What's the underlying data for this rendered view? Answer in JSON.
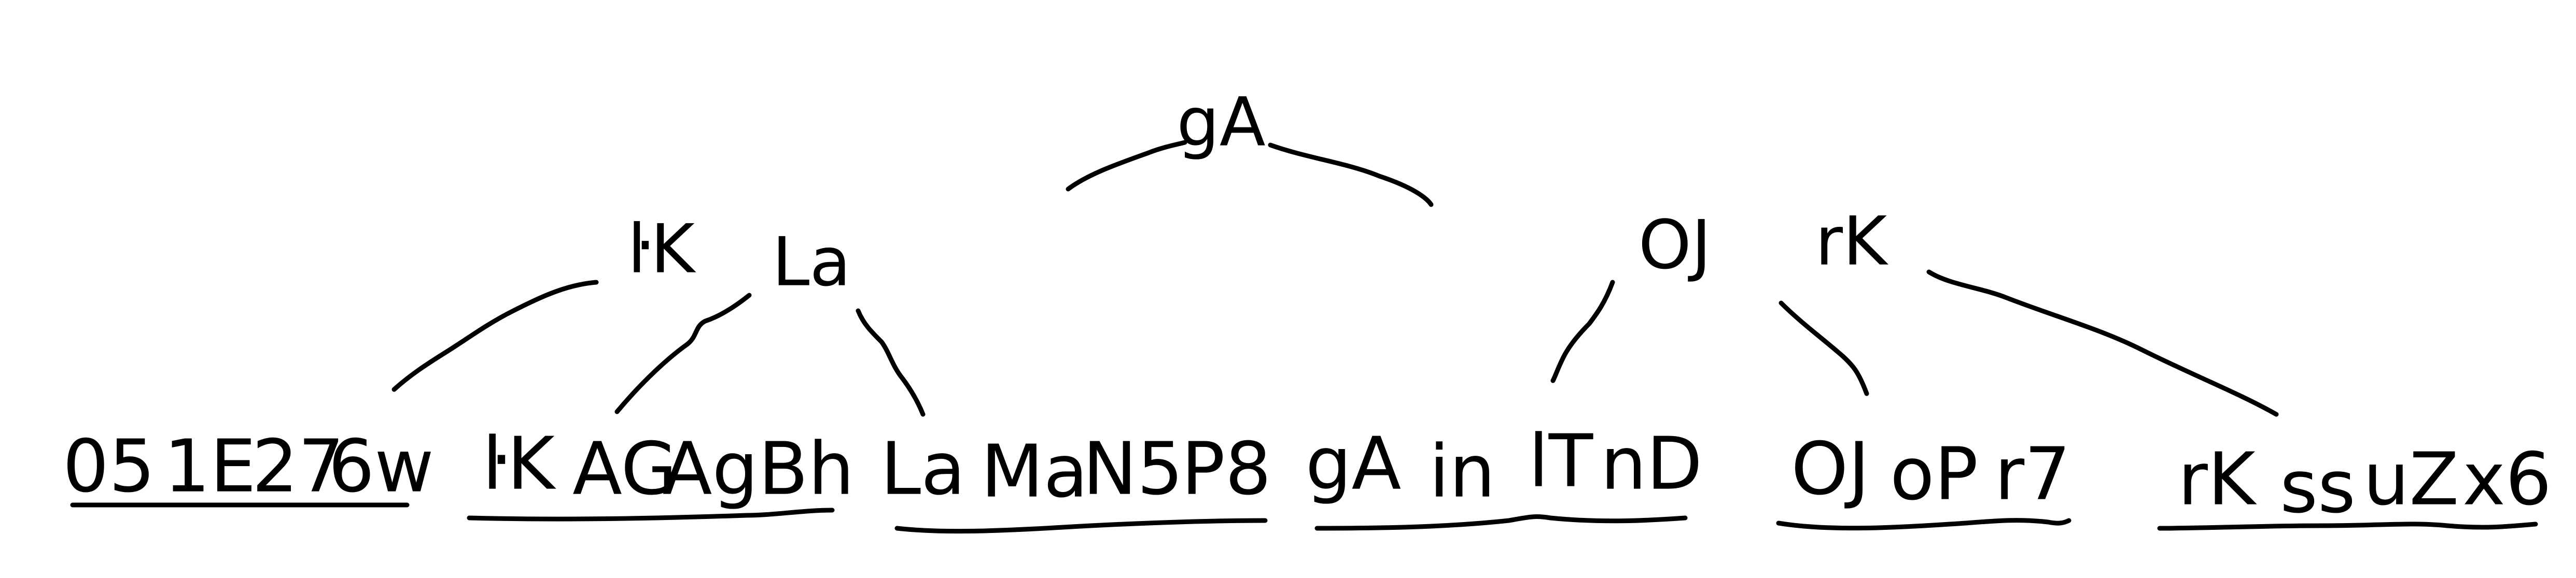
{
  "tree": {
    "root": {
      "keys": [
        "gA"
      ]
    },
    "internal_nodes": [
      {
        "keys": [
          "ŀK",
          "La"
        ]
      },
      {
        "keys": [
          "OJ",
          "rK"
        ]
      }
    ],
    "leaves": [
      {
        "keys": [
          "05",
          "1E",
          "27",
          "6w"
        ]
      },
      {
        "keys": [
          "ŀK",
          "AG",
          "Ag",
          "Bh"
        ]
      },
      {
        "keys": [
          "La",
          "Ma",
          "N5",
          "P8"
        ]
      },
      {
        "keys": [
          "gA",
          "in",
          "lT",
          "nD"
        ]
      },
      {
        "keys": [
          "OJ",
          "oP",
          "r7"
        ]
      },
      {
        "keys": [
          "rK",
          "ss",
          "uZ",
          "x6"
        ]
      }
    ]
  },
  "colors": {
    "ink": "#000000",
    "background": "#ffffff"
  }
}
